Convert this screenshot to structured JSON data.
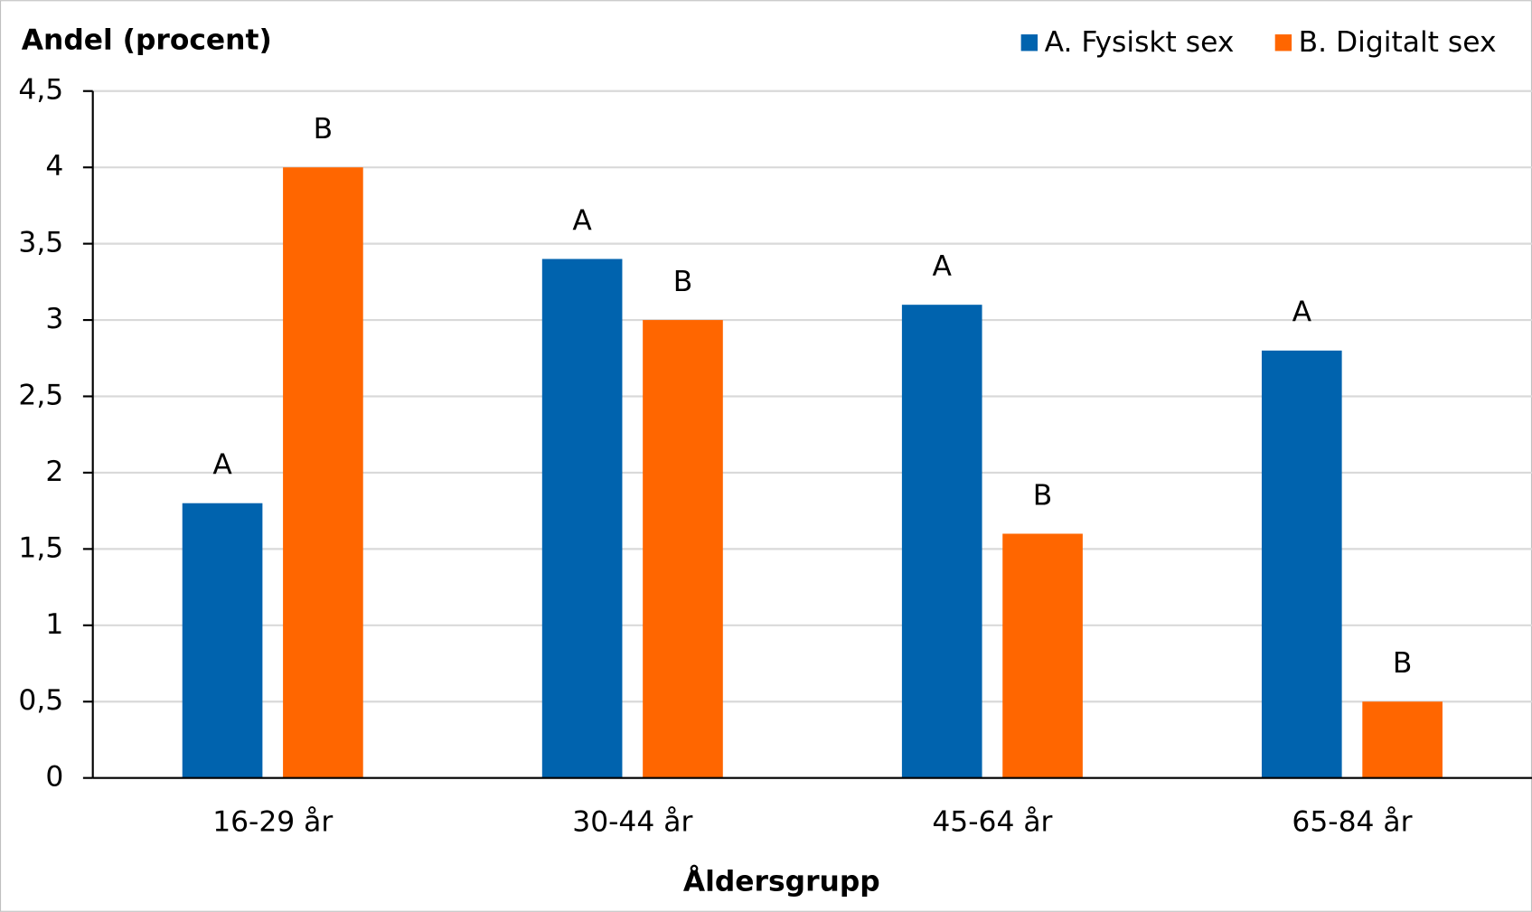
{
  "chart_data": {
    "type": "bar",
    "y_title": "Andel (procent)",
    "x_title": "Åldersgrupp",
    "categories": [
      "16-29 år",
      "30-44 år",
      "45-64 år",
      "65-84 år"
    ],
    "series": [
      {
        "name": "A. Fysiskt sex",
        "color": "#0063ae",
        "values": [
          1.8,
          3.4,
          3.1,
          2.8
        ],
        "value_labels": [
          "A",
          "A",
          "A",
          "A"
        ]
      },
      {
        "name": "B. Digitalt sex",
        "color": "#ff6600",
        "values": [
          4,
          3,
          1.6,
          0.5
        ],
        "value_labels": [
          "B",
          "B",
          "B",
          "B"
        ]
      }
    ],
    "ylim": [
      0,
      4.5
    ],
    "yticks": [
      0,
      {
        "value": 0.5,
        "label": "0,5"
      },
      1,
      {
        "value": 1.5,
        "label": "1,5"
      },
      2,
      {
        "value": 2.5,
        "label": "2,5"
      },
      3,
      {
        "value": 3.5,
        "label": "3,5"
      },
      4,
      {
        "value": 4.5,
        "label": "4,5"
      }
    ],
    "grid": true,
    "legend": "top-right"
  }
}
